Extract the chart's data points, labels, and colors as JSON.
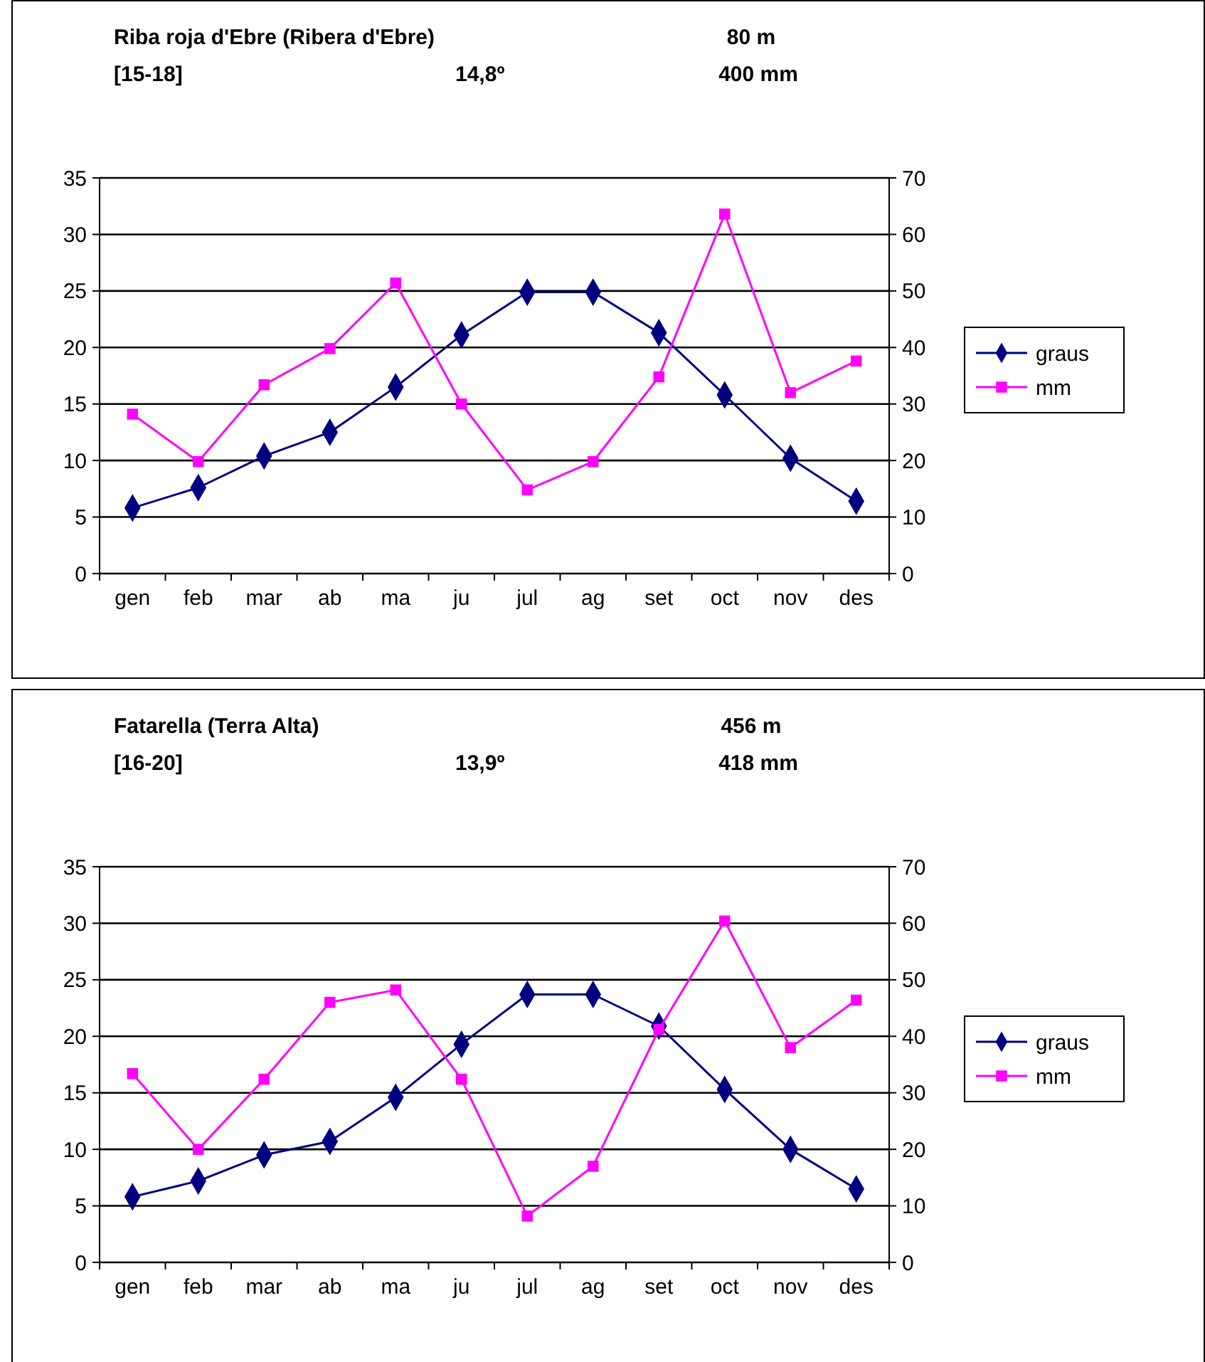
{
  "chart_data": [
    {
      "type": "line",
      "title": "Riba roja d'Ebre (Ribera d'Ebre)",
      "annotations": [
        "80 m",
        "[15-18]",
        "14,8º",
        "400 mm"
      ],
      "categories": [
        "gen",
        "feb",
        "mar",
        "ab",
        "ma",
        "ju",
        "jul",
        "ag",
        "set",
        "oct",
        "nov",
        "des"
      ],
      "series": [
        {
          "name": "graus",
          "color": "#000080",
          "marker": "diamond",
          "values": [
            5.8,
            7.6,
            10.4,
            12.5,
            16.5,
            21.1,
            24.9,
            24.9,
            21.3,
            15.8,
            10.2,
            6.4
          ]
        },
        {
          "name": "mm",
          "color": "#ff00ff",
          "marker": "square",
          "axis": "y2",
          "values": [
            28.2,
            19.8,
            33.4,
            39.8,
            51.4,
            30,
            14.8,
            19.8,
            34.8,
            63.6,
            32,
            37.6
          ]
        }
      ],
      "ylim": [
        0,
        35
      ],
      "yticks": [
        0,
        5,
        10,
        15,
        20,
        25,
        30,
        35
      ],
      "y2lim": [
        0,
        70
      ],
      "y2ticks": [
        0,
        10,
        20,
        30,
        40,
        50,
        60,
        70
      ],
      "grid": "y",
      "legend": "right"
    },
    {
      "type": "line",
      "title": "Fatarella (Terra Alta)",
      "annotations": [
        "456 m",
        "[16-20]",
        "13,9º",
        "418 mm"
      ],
      "categories": [
        "gen",
        "feb",
        "mar",
        "ab",
        "ma",
        "ju",
        "jul",
        "ag",
        "set",
        "oct",
        "nov",
        "des"
      ],
      "series": [
        {
          "name": "graus",
          "color": "#000080",
          "marker": "diamond",
          "values": [
            5.8,
            7.2,
            9.5,
            10.7,
            14.6,
            19.3,
            23.7,
            23.7,
            20.9,
            15.3,
            10.0,
            6.5
          ]
        },
        {
          "name": "mm",
          "color": "#ff00ff",
          "marker": "square",
          "axis": "y2",
          "values": [
            33.4,
            20,
            32.4,
            46,
            48.2,
            32.4,
            8.2,
            17,
            41.2,
            60.4,
            38,
            46.4
          ]
        }
      ],
      "ylim": [
        0,
        35
      ],
      "yticks": [
        0,
        5,
        10,
        15,
        20,
        25,
        30,
        35
      ],
      "y2lim": [
        0,
        70
      ],
      "y2ticks": [
        0,
        10,
        20,
        30,
        40,
        50,
        60,
        70
      ],
      "grid": "y",
      "legend": "right"
    }
  ]
}
